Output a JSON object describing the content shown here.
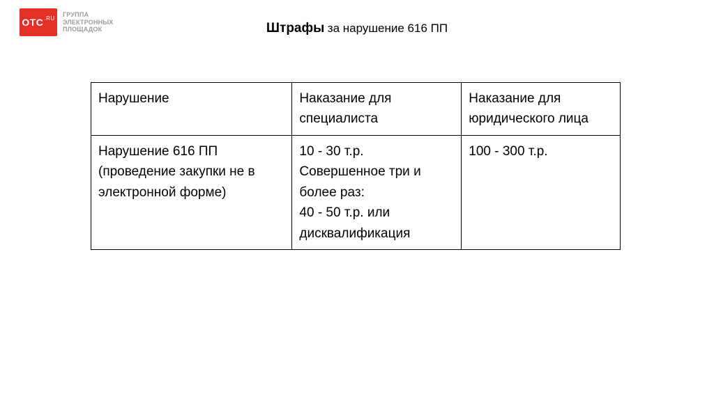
{
  "logo": {
    "box_text": "OTC",
    "box_suffix": ".RU",
    "box_bg": "#e5302a",
    "tagline": "ГРУППА\nЭЛЕКТРОННЫХ\nПЛОЩАДОК",
    "tagline_color": "#9b9b9b"
  },
  "title": {
    "strong": "Штрафы",
    "rest": " за нарушение 616 ПП"
  },
  "table": {
    "border_color": "#000000",
    "col_widths": [
      "38%",
      "32%",
      "30%"
    ],
    "columns": [
      "Нарушение",
      "Наказание для специалиста",
      "Наказание для юридического лица"
    ],
    "rows": [
      [
        "Нарушение 616 ПП (проведение закупки не в электронной форме)",
        "10 - 30 т.р.\nСовершенное три и более раз:\n40 - 50 т.р. или дисквалификация",
        "100 - 300 т.р."
      ]
    ]
  },
  "background_color": "#ffffff",
  "text_color": "#000000"
}
